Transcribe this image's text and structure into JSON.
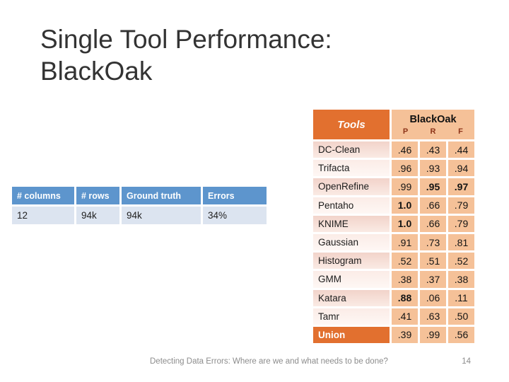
{
  "slide": {
    "title_line1": "Single Tool Performance:",
    "title_line2": "BlackOak",
    "footer": "Detecting Data Errors: Where are we and what needs to be done?",
    "page_number": "14"
  },
  "info_table": {
    "headers": [
      "# columns",
      "# rows",
      "Ground truth",
      "Errors"
    ],
    "values": [
      "12",
      "94k",
      "94k",
      "34%"
    ]
  },
  "tools_table": {
    "tools_header": "Tools",
    "dataset_header": "BlackOak",
    "metric_headers": [
      "P",
      "R",
      "F"
    ],
    "rows": [
      {
        "name": "DC-Clean",
        "p": ".46",
        "r": ".43",
        "f": ".44"
      },
      {
        "name": "Trifacta",
        "p": ".96",
        "r": ".93",
        "f": ".94"
      },
      {
        "name": "OpenRefine",
        "p": ".99",
        "r": ".95",
        "r_bold": true,
        "f": ".97",
        "f_bold": true
      },
      {
        "name": "Pentaho",
        "p": "1.0",
        "p_bold": true,
        "r": ".66",
        "f": ".79"
      },
      {
        "name": "KNIME",
        "p": "1.0",
        "p_bold": true,
        "r": ".66",
        "f": ".79"
      },
      {
        "name": "Gaussian",
        "p": ".91",
        "r": ".73",
        "f": ".81"
      },
      {
        "name": "Histogram",
        "p": ".52",
        "r": ".51",
        "f": ".52"
      },
      {
        "name": "GMM",
        "p": ".38",
        "r": ".37",
        "f": ".38"
      },
      {
        "name": "Katara",
        "p": ".88",
        "p_bold": true,
        "r": ".06",
        "f": ".11"
      },
      {
        "name": "Tamr",
        "p": ".41",
        "r": ".63",
        "f": ".50"
      },
      {
        "name": "Union",
        "p": ".39",
        "r": ".99",
        "f": ".56",
        "accent": true
      }
    ]
  },
  "colors": {
    "accent_orange": "#E2702F",
    "value_cell_peach": "#F5C198",
    "metric_label_maroon": "#8C3318",
    "info_header_blue": "#5D95CD",
    "info_row_blue": "#DCE4F0",
    "footer_gray": "#8C8C8C"
  }
}
